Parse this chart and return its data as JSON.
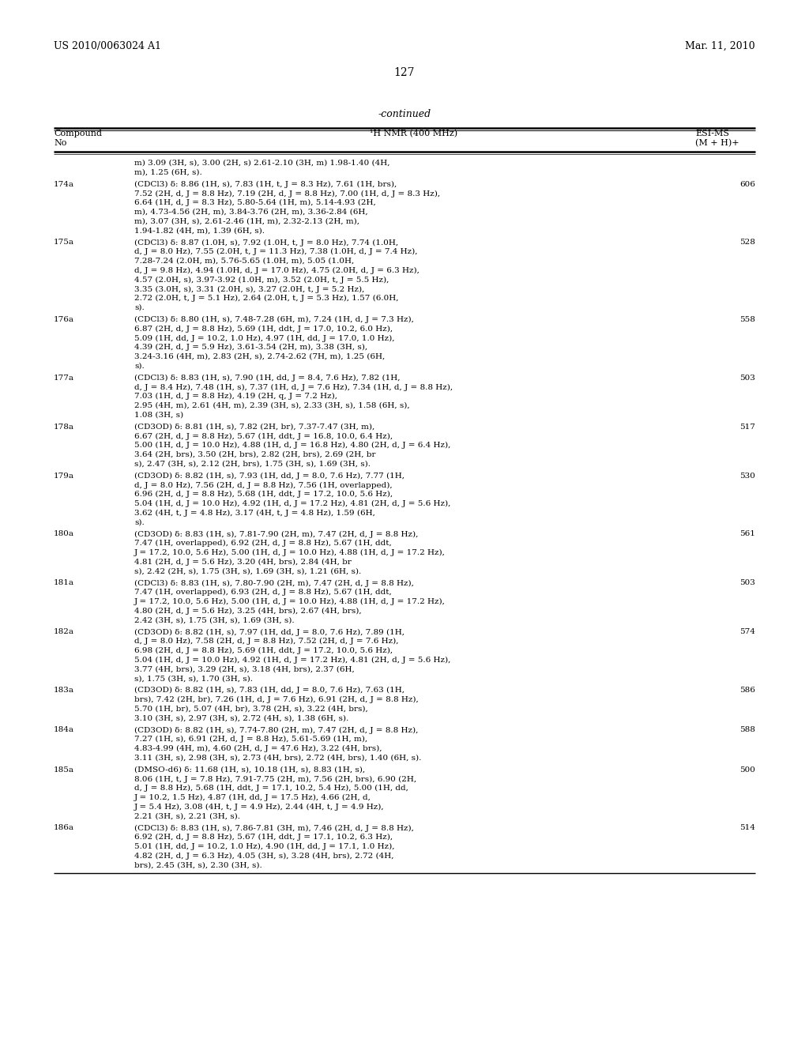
{
  "header_left": "US 2010/0063024 A1",
  "header_right": "Mar. 11, 2010",
  "page_number": "127",
  "continued_label": "-continued",
  "col1_header_line1": "Compound",
  "col1_header_line2": "No",
  "col2_header": "¹H NMR (400 MHz)",
  "col3_header_line1": "ESI-MS",
  "col3_header_line2": "(M + H)+",
  "rows": [
    {
      "compound": "",
      "nmr": "m) 3.09 (3H, s), 3.00 (2H, s) 2.61-2.10 (3H, m) 1.98-1.40 (4H,\nm), 1.25 (6H, s).",
      "ms": ""
    },
    {
      "compound": "174a",
      "nmr": "(CDCl3) δ: 8.86 (1H, s), 7.83 (1H, t, J = 8.3 Hz), 7.61 (1H, brs),\n7.52 (2H, d, J = 8.8 Hz), 7.19 (2H, d, J = 8.8 Hz), 7.00 (1H, d, J = 8.3 Hz),\n6.64 (1H, d, J = 8.3 Hz), 5.80-5.64 (1H, m), 5.14-4.93 (2H,\nm), 4.73-4.56 (2H, m), 3.84-3.76 (2H, m), 3.36-2.84 (6H,\nm), 3.07 (3H, s), 2.61-2.46 (1H, m), 2.32-2.13 (2H, m),\n1.94-1.82 (4H, m), 1.39 (6H, s).",
      "ms": "606"
    },
    {
      "compound": "175a",
      "nmr": "(CDCl3) δ: 8.87 (1.0H, s), 7.92 (1.0H, t, J = 8.0 Hz), 7.74 (1.0H,\nd, J = 8.0 Hz), 7.55 (2.0H, t, J = 11.3 Hz), 7.38 (1.0H, d, J = 7.4 Hz),\n7.28-7.24 (2.0H, m), 5.76-5.65 (1.0H, m), 5.05 (1.0H,\nd, J = 9.8 Hz), 4.94 (1.0H, d, J = 17.0 Hz), 4.75 (2.0H, d, J = 6.3 Hz),\n4.57 (2.0H, s), 3.97-3.92 (1.0H, m), 3.52 (2.0H, t, J = 5.5 Hz),\n3.35 (3.0H, s), 3.31 (2.0H, s), 3.27 (2.0H, t, J = 5.2 Hz),\n2.72 (2.0H, t, J = 5.1 Hz), 2.64 (2.0H, t, J = 5.3 Hz), 1.57 (6.0H,\ns).",
      "ms": "528"
    },
    {
      "compound": "176a",
      "nmr": "(CDCl3) δ: 8.80 (1H, s), 7.48-7.28 (6H, m), 7.24 (1H, d, J = 7.3 Hz),\n6.87 (2H, d, J = 8.8 Hz), 5.69 (1H, ddt, J = 17.0, 10.2, 6.0 Hz),\n5.09 (1H, dd, J = 10.2, 1.0 Hz), 4.97 (1H, dd, J = 17.0, 1.0 Hz),\n4.39 (2H, d, J = 5.9 Hz), 3.61-3.54 (2H, m), 3.38 (3H, s),\n3.24-3.16 (4H, m), 2.83 (2H, s), 2.74-2.62 (7H, m), 1.25 (6H,\ns).",
      "ms": "558"
    },
    {
      "compound": "177a",
      "nmr": "(CDCl3) δ: 8.83 (1H, s), 7.90 (1H, dd, J = 8.4, 7.6 Hz), 7.82 (1H,\nd, J = 8.4 Hz), 7.48 (1H, s), 7.37 (1H, d, J = 7.6 Hz), 7.34 (1H, d, J = 8.8 Hz),\n7.03 (1H, d, J = 8.8 Hz), 4.19 (2H, q, J = 7.2 Hz),\n2.95 (4H, m), 2.61 (4H, m), 2.39 (3H, s), 2.33 (3H, s), 1.58 (6H, s),\n1.08 (3H, s)",
      "ms": "503"
    },
    {
      "compound": "178a",
      "nmr": "(CD3OD) δ: 8.81 (1H, s), 7.82 (2H, br), 7.37-7.47 (3H, m),\n6.67 (2H, d, J = 8.8 Hz), 5.67 (1H, ddt, J = 16.8, 10.0, 6.4 Hz),\n5.00 (1H, d, J = 10.0 Hz), 4.88 (1H, d, J = 16.8 Hz), 4.80 (2H, d, J = 6.4 Hz),\n3.64 (2H, brs), 3.50 (2H, brs), 2.82 (2H, brs), 2.69 (2H, br\ns), 2.47 (3H, s), 2.12 (2H, brs), 1.75 (3H, s), 1.69 (3H, s).",
      "ms": "517"
    },
    {
      "compound": "179a",
      "nmr": "(CD3OD) δ: 8.82 (1H, s), 7.93 (1H, dd, J = 8.0, 7.6 Hz), 7.77 (1H,\nd, J = 8.0 Hz), 7.56 (2H, d, J = 8.8 Hz), 7.56 (1H, overlapped),\n6.96 (2H, d, J = 8.8 Hz), 5.68 (1H, ddt, J = 17.2, 10.0, 5.6 Hz),\n5.04 (1H, d, J = 10.0 Hz), 4.92 (1H, d, J = 17.2 Hz), 4.81 (2H, d, J = 5.6 Hz),\n3.62 (4H, t, J = 4.8 Hz), 3.17 (4H, t, J = 4.8 Hz), 1.59 (6H,\ns).",
      "ms": "530"
    },
    {
      "compound": "180a",
      "nmr": "(CD3OD) δ: 8.83 (1H, s), 7.81-7.90 (2H, m), 7.47 (2H, d, J = 8.8 Hz),\n7.47 (1H, overlapped), 6.92 (2H, d, J = 8.8 Hz), 5.67 (1H, ddt,\nJ = 17.2, 10.0, 5.6 Hz), 5.00 (1H, d, J = 10.0 Hz), 4.88 (1H, d, J = 17.2 Hz),\n4.81 (2H, d, J = 5.6 Hz), 3.20 (4H, brs), 2.84 (4H, br\ns), 2.42 (2H, s), 1.75 (3H, s), 1.69 (3H, s), 1.21 (6H, s).",
      "ms": "561"
    },
    {
      "compound": "181a",
      "nmr": "(CDCl3) δ: 8.83 (1H, s), 7.80-7.90 (2H, m), 7.47 (2H, d, J = 8.8 Hz),\n7.47 (1H, overlapped), 6.93 (2H, d, J = 8.8 Hz), 5.67 (1H, ddt,\nJ = 17.2, 10.0, 5.6 Hz), 5.00 (1H, d, J = 10.0 Hz), 4.88 (1H, d, J = 17.2 Hz),\n4.80 (2H, d, J = 5.6 Hz), 3.25 (4H, brs), 2.67 (4H, brs),\n2.42 (3H, s), 1.75 (3H, s), 1.69 (3H, s).",
      "ms": "503"
    },
    {
      "compound": "182a",
      "nmr": "(CD3OD) δ: 8.82 (1H, s), 7.97 (1H, dd, J = 8.0, 7.6 Hz), 7.89 (1H,\nd, J = 8.0 Hz), 7.58 (2H, d, J = 8.8 Hz), 7.52 (2H, d, J = 7.6 Hz),\n6.98 (2H, d, J = 8.8 Hz), 5.69 (1H, ddt, J = 17.2, 10.0, 5.6 Hz),\n5.04 (1H, d, J = 10.0 Hz), 4.92 (1H, d, J = 17.2 Hz), 4.81 (2H, d, J = 5.6 Hz),\n3.77 (4H, brs), 3.29 (2H, s), 3.18 (4H, brs), 2.37 (6H,\ns), 1.75 (3H, s), 1.70 (3H, s).",
      "ms": "574"
    },
    {
      "compound": "183a",
      "nmr": "(CD3OD) δ: 8.82 (1H, s), 7.83 (1H, dd, J = 8.0, 7.6 Hz), 7.63 (1H,\nbrs), 7.42 (2H, br), 7.26 (1H, d, J = 7.6 Hz), 6.91 (2H, d, J = 8.8 Hz),\n5.70 (1H, br), 5.07 (4H, br), 3.78 (2H, s), 3.22 (4H, brs),\n3.10 (3H, s), 2.97 (3H, s), 2.72 (4H, s), 1.38 (6H, s).",
      "ms": "586"
    },
    {
      "compound": "184a",
      "nmr": "(CD3OD) δ: 8.82 (1H, s), 7.74-7.80 (2H, m), 7.47 (2H, d, J = 8.8 Hz),\n7.27 (1H, s), 6.91 (2H, d, J = 8.8 Hz), 5.61-5.69 (1H, m),\n4.83-4.99 (4H, m), 4.60 (2H, d, J = 47.6 Hz), 3.22 (4H, brs),\n3.11 (3H, s), 2.98 (3H, s), 2.73 (4H, brs), 2.72 (4H, brs), 1.40 (6H, s).",
      "ms": "588"
    },
    {
      "compound": "185a",
      "nmr": "(DMSO-d6) δ: 11.68 (1H, s), 10.18 (1H, s), 8.83 (1H, s),\n8.06 (1H, t, J = 7.8 Hz), 7.91-7.75 (2H, m), 7.56 (2H, brs), 6.90 (2H,\nd, J = 8.8 Hz), 5.68 (1H, ddt, J = 17.1, 10.2, 5.4 Hz), 5.00 (1H, dd,\nJ = 10.2, 1.5 Hz), 4.87 (1H, dd, J = 17.5 Hz), 4.66 (2H, d,\nJ = 5.4 Hz), 3.08 (4H, t, J = 4.9 Hz), 2.44 (4H, t, J = 4.9 Hz),\n2.21 (3H, s), 2.21 (3H, s).",
      "ms": "500"
    },
    {
      "compound": "186a",
      "nmr": "(CDCl3) δ: 8.83 (1H, s), 7.86-7.81 (3H, m), 7.46 (2H, d, J = 8.8 Hz),\n6.92 (2H, d, J = 8.8 Hz), 5.67 (1H, ddt, J = 17.1, 10.2, 6.3 Hz),\n5.01 (1H, dd, J = 10.2, 1.0 Hz), 4.90 (1H, dd, J = 17.1, 1.0 Hz),\n4.82 (2H, d, J = 6.3 Hz), 4.05 (3H, s), 3.28 (4H, brs), 2.72 (4H,\nbrs), 2.45 (3H, s), 2.30 (3H, s).",
      "ms": "514"
    }
  ]
}
